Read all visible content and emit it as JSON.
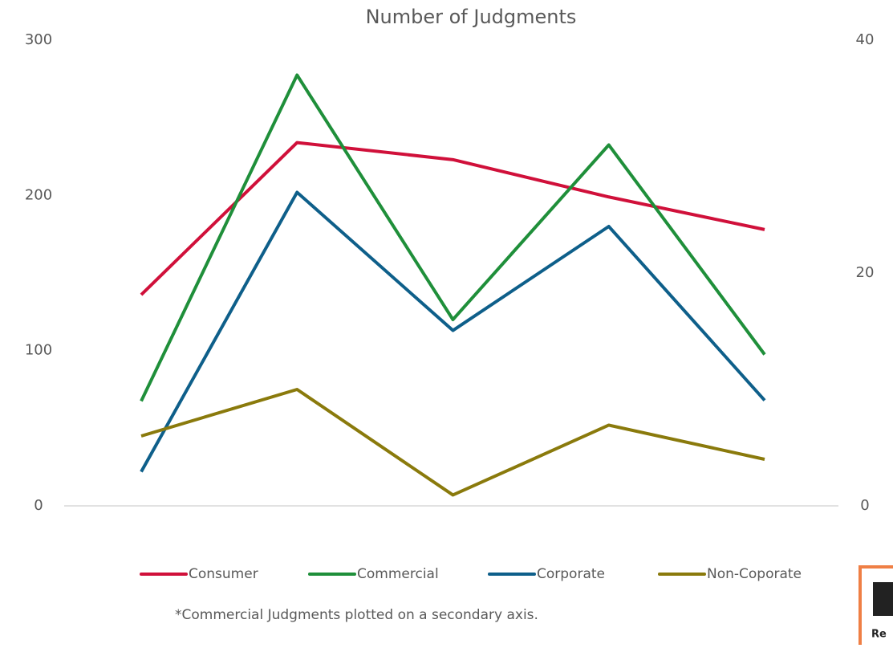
{
  "chart_data": {
    "type": "line",
    "title": "Number of Judgments",
    "categories": [
      null,
      null,
      null,
      null,
      null
    ],
    "series": [
      {
        "name": "Consumer",
        "color": "#d0103a",
        "values": [
          136,
          234,
          223,
          199,
          178
        ]
      },
      {
        "name": "Commercial",
        "color": "#1f8f3a",
        "axis": "y2",
        "values": [
          9,
          37,
          16,
          31,
          13
        ]
      },
      {
        "name": "Corporate",
        "color": "#0e5f8a",
        "values": [
          22,
          202,
          113,
          180,
          68
        ]
      },
      {
        "name": "Non-Coporate",
        "color": "#8a7a0c",
        "values": [
          45,
          75,
          7,
          52,
          30
        ]
      }
    ],
    "ylim": [
      0,
      300
    ],
    "yticks": [
      0,
      100,
      200,
      300
    ],
    "y2lim": [
      0,
      40
    ],
    "y2ticks": [
      0,
      20,
      40
    ],
    "legend": "bottom",
    "annotation": "*Commercial Judgments plotted on a secondary axis.",
    "logo_text": "Re"
  }
}
